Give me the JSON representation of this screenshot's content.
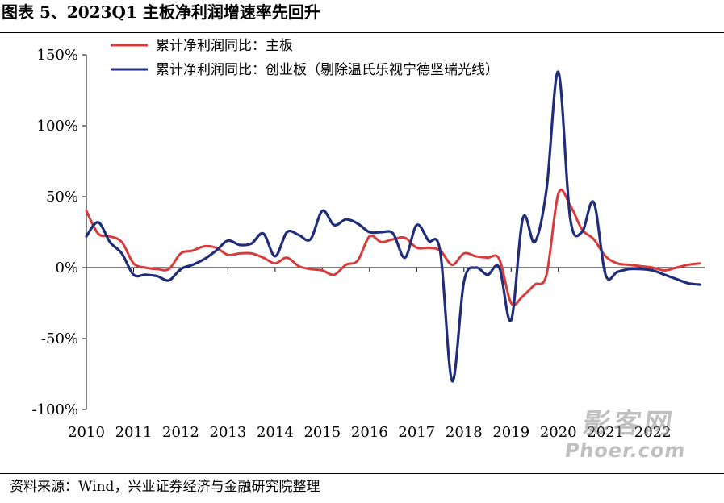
{
  "figure_title": "图表 5、2023Q1 主板净利润增速率先回升",
  "source_text": "资料来源：Wind，兴业证券经济与金融研究院整理",
  "watermark": {
    "main": "影客网",
    "sub": "Phoer.com"
  },
  "chart_data": {
    "type": "line",
    "title": "",
    "xlabel": "",
    "ylabel": "",
    "ylim": [
      -100,
      150
    ],
    "y_ticks": [
      150,
      100,
      50,
      0,
      -50,
      -100
    ],
    "y_tick_labels": [
      "150%",
      "100%",
      "50%",
      "0%",
      "-50%",
      "-100%"
    ],
    "xlim": [
      2010.0,
      2023.1
    ],
    "x_ticks": [
      2010,
      2011,
      2012,
      2013,
      2014,
      2015,
      2016,
      2017,
      2018,
      2019,
      2020,
      2021,
      2022
    ],
    "x_tick_labels": [
      "2010",
      "2011",
      "2012",
      "2013",
      "2014",
      "2015",
      "2016",
      "2017",
      "2018",
      "2019",
      "2020",
      "2021",
      "2022"
    ],
    "grid": false,
    "legend_position": "top",
    "series": [
      {
        "name": "累计净利润同比：主板",
        "color": "#d83b3b",
        "x": [
          2010.0,
          2010.25,
          2010.5,
          2010.75,
          2011.0,
          2011.25,
          2011.5,
          2011.75,
          2012.0,
          2012.25,
          2012.5,
          2012.75,
          2013.0,
          2013.25,
          2013.5,
          2013.75,
          2014.0,
          2014.25,
          2014.5,
          2014.75,
          2015.0,
          2015.25,
          2015.5,
          2015.75,
          2016.0,
          2016.25,
          2016.5,
          2016.75,
          2017.0,
          2017.25,
          2017.5,
          2017.75,
          2018.0,
          2018.25,
          2018.5,
          2018.75,
          2019.0,
          2019.25,
          2019.5,
          2019.75,
          2020.0,
          2020.25,
          2020.5,
          2020.75,
          2021.0,
          2021.25,
          2021.5,
          2021.75,
          2022.0,
          2022.25,
          2022.5,
          2022.75,
          2023.0
        ],
        "values": [
          40,
          24,
          22,
          18,
          3,
          0,
          -1,
          -1,
          10,
          12,
          15,
          14,
          9,
          10,
          10,
          7,
          3,
          7,
          1,
          -1,
          -2,
          -5,
          2,
          5,
          22,
          18,
          20,
          21,
          14,
          14,
          12,
          2,
          10,
          8,
          7,
          6,
          -25,
          -20,
          -12,
          -5,
          52,
          44,
          27,
          20,
          8,
          3,
          2,
          1,
          0,
          -2,
          0,
          2,
          3
        ]
      },
      {
        "name": "累计净利润同比：创业板（剔除温氏乐视宁德坚瑞光线）",
        "color": "#1f2d7a",
        "x": [
          2010.0,
          2010.25,
          2010.5,
          2010.75,
          2011.0,
          2011.25,
          2011.5,
          2011.75,
          2012.0,
          2012.25,
          2012.5,
          2012.75,
          2013.0,
          2013.25,
          2013.5,
          2013.75,
          2014.0,
          2014.25,
          2014.5,
          2014.75,
          2015.0,
          2015.25,
          2015.5,
          2015.75,
          2016.0,
          2016.25,
          2016.5,
          2016.75,
          2017.0,
          2017.25,
          2017.5,
          2017.75,
          2018.0,
          2018.25,
          2018.5,
          2018.75,
          2019.0,
          2019.25,
          2019.5,
          2019.75,
          2020.0,
          2020.25,
          2020.5,
          2020.75,
          2021.0,
          2021.25,
          2021.5,
          2021.75,
          2022.0,
          2022.25,
          2022.5,
          2022.75,
          2023.0
        ],
        "values": [
          22,
          32,
          18,
          10,
          -5,
          -5,
          -6,
          -9,
          -1,
          2,
          6,
          12,
          19,
          16,
          17,
          24,
          8,
          25,
          23,
          20,
          40,
          30,
          34,
          31,
          25,
          25,
          24,
          7,
          30,
          19,
          11,
          -80,
          -10,
          0,
          -5,
          0,
          -37,
          35,
          18,
          55,
          138,
          35,
          25,
          46,
          -5,
          -3,
          -1,
          -1,
          -2,
          -5,
          -8,
          -11,
          -12
        ]
      }
    ]
  }
}
